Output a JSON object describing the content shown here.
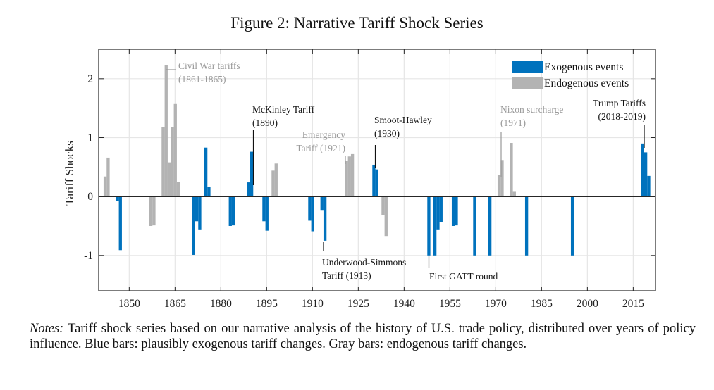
{
  "figure": {
    "title": "Figure 2: Narrative Tariff Shock Series",
    "notes_lead": "Notes:",
    "notes_body": " Tariff shock series based on our narrative analysis of the history of U.S. trade policy, distributed over years of policy influence. Blue bars: plausibly exogenous tariff changes. Gray bars: endogenous tariff changes."
  },
  "colors": {
    "exogenous": "#0072BD",
    "endogenous": "#B3B3B3",
    "annotation_exogenous": "#111111",
    "annotation_endogenous": "#999999",
    "grid": "#E6E6E6",
    "axis": "#262626"
  },
  "chart_data": {
    "type": "bar",
    "title": "Figure 2: Narrative Tariff Shock Series",
    "xlabel": "",
    "ylabel": "Tariff Shocks",
    "xlim": [
      1840,
      2022.3
    ],
    "ylim": [
      -1.6,
      2.5
    ],
    "xticks": [
      1850,
      1865,
      1880,
      1895,
      1910,
      1925,
      1940,
      1955,
      1970,
      1985,
      2000,
      2015
    ],
    "yticks": [
      -1,
      0,
      1,
      2
    ],
    "grid": true,
    "legend": {
      "placement": "top-right",
      "entries": [
        "Exogenous events",
        "Endogenous events"
      ]
    },
    "series": [
      {
        "name": "Exogenous events",
        "points": [
          {
            "year": 1846,
            "value": -0.08
          },
          {
            "year": 1847,
            "value": -0.91
          },
          {
            "year": 1871,
            "value": -0.99
          },
          {
            "year": 1872,
            "value": -0.42
          },
          {
            "year": 1873,
            "value": -0.57
          },
          {
            "year": 1875,
            "value": 0.83
          },
          {
            "year": 1876,
            "value": 0.16
          },
          {
            "year": 1883,
            "value": -0.5
          },
          {
            "year": 1884,
            "value": -0.49
          },
          {
            "year": 1889,
            "value": 0.24
          },
          {
            "year": 1890,
            "value": 0.76
          },
          {
            "year": 1894,
            "value": -0.42
          },
          {
            "year": 1895,
            "value": -0.58
          },
          {
            "year": 1909,
            "value": -0.41
          },
          {
            "year": 1910,
            "value": -0.59
          },
          {
            "year": 1913,
            "value": -0.24
          },
          {
            "year": 1914,
            "value": -0.75
          },
          {
            "year": 1930,
            "value": 0.54
          },
          {
            "year": 1931,
            "value": 0.46
          },
          {
            "year": 1948,
            "value": -1.0
          },
          {
            "year": 1950,
            "value": -1.0
          },
          {
            "year": 1951,
            "value": -0.57
          },
          {
            "year": 1952,
            "value": -0.43
          },
          {
            "year": 1956,
            "value": -0.5
          },
          {
            "year": 1957,
            "value": -0.49
          },
          {
            "year": 1963,
            "value": -1.0
          },
          {
            "year": 1968,
            "value": -1.0
          },
          {
            "year": 1980,
            "value": -1.0
          },
          {
            "year": 1995,
            "value": -1.0
          },
          {
            "year": 2018,
            "value": 0.9
          },
          {
            "year": 2019,
            "value": 0.75
          },
          {
            "year": 2020,
            "value": 0.35
          }
        ]
      },
      {
        "name": "Endogenous events",
        "points": [
          {
            "year": 1842,
            "value": 0.34
          },
          {
            "year": 1843,
            "value": 0.66
          },
          {
            "year": 1857,
            "value": -0.5
          },
          {
            "year": 1858,
            "value": -0.49
          },
          {
            "year": 1861,
            "value": 1.18
          },
          {
            "year": 1862,
            "value": 2.23
          },
          {
            "year": 1863,
            "value": 0.58
          },
          {
            "year": 1864,
            "value": 1.18
          },
          {
            "year": 1865,
            "value": 1.57
          },
          {
            "year": 1866,
            "value": 0.25
          },
          {
            "year": 1897,
            "value": 0.44
          },
          {
            "year": 1898,
            "value": 0.56
          },
          {
            "year": 1921,
            "value": 0.61
          },
          {
            "year": 1922,
            "value": 0.68
          },
          {
            "year": 1923,
            "value": 0.72
          },
          {
            "year": 1933,
            "value": -0.32
          },
          {
            "year": 1934,
            "value": -0.67
          },
          {
            "year": 1971,
            "value": 0.37
          },
          {
            "year": 1972,
            "value": 0.62
          },
          {
            "year": 1975,
            "value": 0.91
          },
          {
            "year": 1976,
            "value": 0.08
          }
        ]
      }
    ],
    "annotations": [
      {
        "id": "civil-war",
        "lines": [
          "Civil War tariffs",
          "(1861-1865)"
        ],
        "type": "endogenous"
      },
      {
        "id": "mckinley",
        "lines": [
          "McKinley Tariff",
          "(1890)"
        ],
        "type": "exogenous"
      },
      {
        "id": "emergency",
        "lines": [
          "Emergency",
          "Tariff (1921)"
        ],
        "type": "endogenous"
      },
      {
        "id": "smoot-hawley",
        "lines": [
          "Smoot-Hawley",
          "(1930)"
        ],
        "type": "exogenous"
      },
      {
        "id": "nixon",
        "lines": [
          "Nixon surcharge",
          "(1971)"
        ],
        "type": "endogenous"
      },
      {
        "id": "trump",
        "lines": [
          "Trump Tariffs",
          "(2018-2019)"
        ],
        "type": "exogenous"
      },
      {
        "id": "underwood",
        "lines": [
          "Underwood-Simmons",
          "Tariff (1913)"
        ],
        "type": "exogenous"
      },
      {
        "id": "gatt",
        "lines": [
          "First GATT round"
        ],
        "type": "exogenous"
      }
    ]
  }
}
